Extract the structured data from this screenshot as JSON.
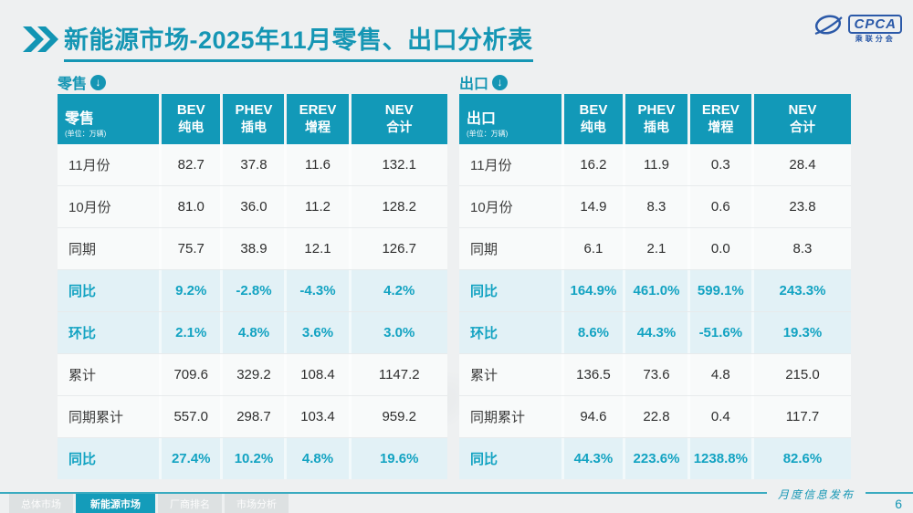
{
  "page": {
    "title": {
      "bold": "新能源市场",
      "rest": "-2025年11月零售、出口分析表"
    },
    "logo": {
      "abbr": "CPCA",
      "name": "乘联分会"
    },
    "icons": {
      "double_chevron": "double-chevron-right",
      "down_arrow": "↓"
    },
    "tabs": [
      {
        "label": "总体市场",
        "active": false
      },
      {
        "label": "新能源市场",
        "active": true
      },
      {
        "label": "厂商排名",
        "active": false
      },
      {
        "label": "市场分析",
        "active": false
      }
    ],
    "footer": {
      "ribbon": "月度信息发布",
      "page_number": "6"
    },
    "colors": {
      "accent": "#1596b4",
      "header_bg": "#1299b8",
      "highlight_text": "#13a3c2",
      "highlight_row_bg": "#e2f1f6",
      "logo_blue": "#2b59a8"
    }
  },
  "chart_data": [
    {
      "type": "table",
      "title": "零售",
      "unit_note": "(单位：万辆)",
      "columns": [
        {
          "abbr": "BEV",
          "zh": "纯电"
        },
        {
          "abbr": "PHEV",
          "zh": "插电"
        },
        {
          "abbr": "EREV",
          "zh": "增程"
        },
        {
          "abbr": "NEV",
          "zh": "合计"
        }
      ],
      "rows": [
        {
          "label": "11月份",
          "values": [
            "82.7",
            "37.8",
            "11.6",
            "132.1"
          ],
          "highlight": false
        },
        {
          "label": "10月份",
          "values": [
            "81.0",
            "36.0",
            "11.2",
            "128.2"
          ],
          "highlight": false
        },
        {
          "label": "同期",
          "values": [
            "75.7",
            "38.9",
            "12.1",
            "126.7"
          ],
          "highlight": false
        },
        {
          "label": "同比",
          "values": [
            "9.2%",
            "-2.8%",
            "-4.3%",
            "4.2%"
          ],
          "highlight": true
        },
        {
          "label": "环比",
          "values": [
            "2.1%",
            "4.8%",
            "3.6%",
            "3.0%"
          ],
          "highlight": true
        },
        {
          "label": "累计",
          "values": [
            "709.6",
            "329.2",
            "108.4",
            "1147.2"
          ],
          "highlight": false
        },
        {
          "label": "同期累计",
          "values": [
            "557.0",
            "298.7",
            "103.4",
            "959.2"
          ],
          "highlight": false
        },
        {
          "label": "同比",
          "values": [
            "27.4%",
            "10.2%",
            "4.8%",
            "19.6%"
          ],
          "highlight": true
        }
      ]
    },
    {
      "type": "table",
      "title": "出口",
      "unit_note": "(单位：万辆)",
      "columns": [
        {
          "abbr": "BEV",
          "zh": "纯电"
        },
        {
          "abbr": "PHEV",
          "zh": "插电"
        },
        {
          "abbr": "EREV",
          "zh": "增程"
        },
        {
          "abbr": "NEV",
          "zh": "合计"
        }
      ],
      "rows": [
        {
          "label": "11月份",
          "values": [
            "16.2",
            "11.9",
            "0.3",
            "28.4"
          ],
          "highlight": false
        },
        {
          "label": "10月份",
          "values": [
            "14.9",
            "8.3",
            "0.6",
            "23.8"
          ],
          "highlight": false
        },
        {
          "label": "同期",
          "values": [
            "6.1",
            "2.1",
            "0.0",
            "8.3"
          ],
          "highlight": false
        },
        {
          "label": "同比",
          "values": [
            "164.9%",
            "461.0%",
            "599.1%",
            "243.3%"
          ],
          "highlight": true
        },
        {
          "label": "环比",
          "values": [
            "8.6%",
            "44.3%",
            "-51.6%",
            "19.3%"
          ],
          "highlight": true
        },
        {
          "label": "累计",
          "values": [
            "136.5",
            "73.6",
            "4.8",
            "215.0"
          ],
          "highlight": false
        },
        {
          "label": "同期累计",
          "values": [
            "94.6",
            "22.8",
            "0.4",
            "117.7"
          ],
          "highlight": false
        },
        {
          "label": "同比",
          "values": [
            "44.3%",
            "223.6%",
            "1238.8%",
            "82.6%"
          ],
          "highlight": true
        }
      ]
    }
  ]
}
